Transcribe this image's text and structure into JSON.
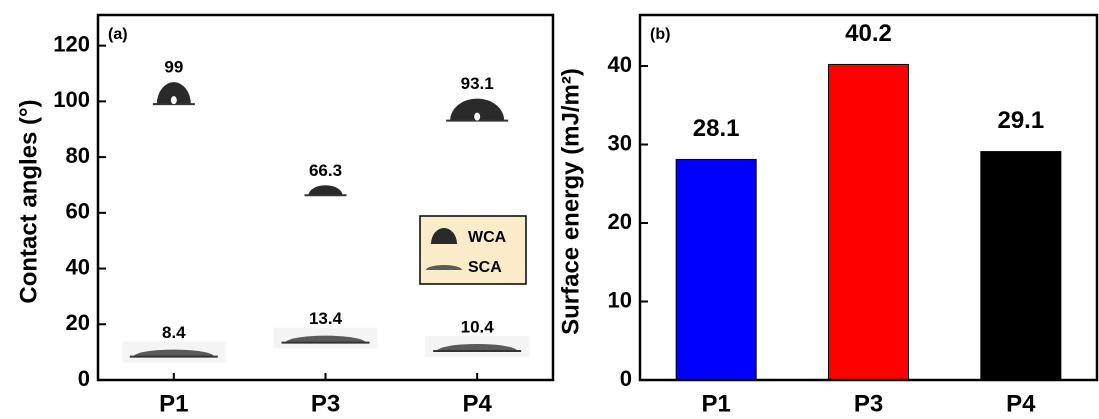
{
  "chart_data": [
    {
      "type": "droplet",
      "panel_label": "(a)",
      "ylabel": "Contact angles (°)",
      "categories": [
        "P1",
        "P3",
        "P4"
      ],
      "series": [
        {
          "name": "WCA",
          "color": "#2a2a2a",
          "values": [
            99,
            66.3,
            93.1
          ]
        },
        {
          "name": "SCA",
          "color": "#5a5a5a",
          "values": [
            8.4,
            13.4,
            10.4
          ]
        }
      ],
      "ylim": [
        0,
        131
      ],
      "yticks": [
        0,
        20,
        40,
        60,
        80,
        100,
        120
      ],
      "legend": "center-right"
    },
    {
      "type": "bar",
      "panel_label": "(b)",
      "ylabel": "Surface energy (mJ/m²)",
      "categories": [
        "P1",
        "P3",
        "P4"
      ],
      "values": [
        28.1,
        40.2,
        29.1
      ],
      "colors": [
        "#0000ff",
        "#ff0000",
        "#000000"
      ],
      "ylim": [
        0,
        46.5
      ],
      "yticks": [
        0,
        10,
        20,
        30,
        40
      ]
    }
  ]
}
